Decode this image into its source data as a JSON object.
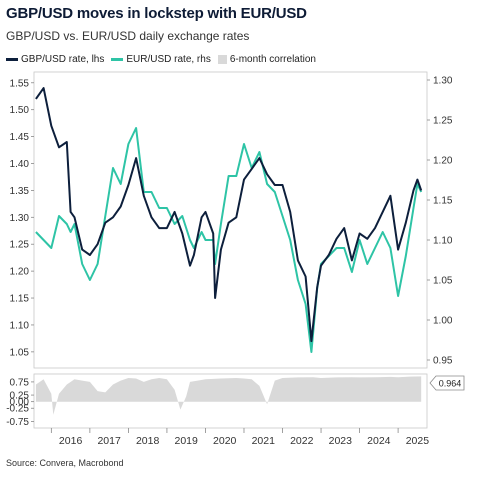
{
  "header": {
    "title": "GBP/USD moves in lockstep with EUR/USD",
    "subtitle": "GBP/USD vs. EUR/USD daily exchange rates"
  },
  "legend": [
    {
      "label": "GBP/USD rate, lhs",
      "color": "#0d1f3c",
      "kind": "line"
    },
    {
      "label": "EUR/USD rate, rhs",
      "color": "#2ec4a6",
      "kind": "line"
    },
    {
      "label": "6-month correlation",
      "color": "#d9d9d9",
      "kind": "area"
    }
  ],
  "source": "Source: Convera, Macrobond",
  "callout": "0.964",
  "chart_data": [
    {
      "type": "line",
      "title": "",
      "x": [
        2015.6,
        2015.8,
        2016.0,
        2016.2,
        2016.4,
        2016.5,
        2016.6,
        2016.8,
        2017.0,
        2017.2,
        2017.4,
        2017.6,
        2017.8,
        2018.0,
        2018.2,
        2018.4,
        2018.6,
        2018.8,
        2019.0,
        2019.2,
        2019.4,
        2019.6,
        2019.7,
        2019.9,
        2020.0,
        2020.2,
        2020.25,
        2020.4,
        2020.6,
        2020.8,
        2021.0,
        2021.2,
        2021.4,
        2021.6,
        2021.8,
        2022.0,
        2022.2,
        2022.4,
        2022.6,
        2022.75,
        2022.9,
        2023.0,
        2023.2,
        2023.4,
        2023.6,
        2023.8,
        2024.0,
        2024.2,
        2024.4,
        2024.6,
        2024.8,
        2025.0,
        2025.2,
        2025.4,
        2025.5,
        2025.6
      ],
      "series": [
        {
          "name": "GBP/USD rate, lhs",
          "axis": "left",
          "values": [
            1.52,
            1.54,
            1.47,
            1.43,
            1.44,
            1.31,
            1.3,
            1.24,
            1.23,
            1.25,
            1.29,
            1.3,
            1.32,
            1.36,
            1.41,
            1.34,
            1.3,
            1.28,
            1.28,
            1.31,
            1.27,
            1.21,
            1.23,
            1.3,
            1.31,
            1.27,
            1.15,
            1.24,
            1.29,
            1.3,
            1.37,
            1.39,
            1.41,
            1.38,
            1.36,
            1.36,
            1.31,
            1.22,
            1.19,
            1.07,
            1.17,
            1.21,
            1.23,
            1.26,
            1.28,
            1.22,
            1.27,
            1.26,
            1.28,
            1.31,
            1.34,
            1.24,
            1.29,
            1.35,
            1.37,
            1.35
          ]
        },
        {
          "name": "EUR/USD rate, rhs",
          "axis": "right",
          "values": [
            1.11,
            1.1,
            1.09,
            1.13,
            1.12,
            1.11,
            1.12,
            1.07,
            1.05,
            1.07,
            1.13,
            1.19,
            1.17,
            1.22,
            1.24,
            1.16,
            1.16,
            1.14,
            1.14,
            1.12,
            1.13,
            1.1,
            1.09,
            1.11,
            1.1,
            1.1,
            1.07,
            1.12,
            1.18,
            1.18,
            1.22,
            1.19,
            1.21,
            1.17,
            1.16,
            1.13,
            1.1,
            1.05,
            1.02,
            0.96,
            1.04,
            1.07,
            1.08,
            1.09,
            1.09,
            1.06,
            1.1,
            1.07,
            1.09,
            1.11,
            1.09,
            1.03,
            1.08,
            1.14,
            1.17,
            1.16
          ]
        }
      ],
      "ylim_left": [
        1.02,
        1.57
      ],
      "ylim_right": [
        0.94,
        1.31
      ],
      "yticks_left": [
        "1.55",
        "1.50",
        "1.45",
        "1.40",
        "1.35",
        "1.30",
        "1.25",
        "1.20",
        "1.15",
        "1.10",
        "1.05"
      ],
      "yticks_right": [
        "1.30",
        "1.25",
        "1.20",
        "1.15",
        "1.10",
        "1.05",
        "1.00",
        "0.95"
      ],
      "grid": false
    },
    {
      "type": "area",
      "title": "",
      "x": [
        2015.6,
        2015.8,
        2016.0,
        2016.05,
        2016.2,
        2016.4,
        2016.6,
        2016.8,
        2017.0,
        2017.2,
        2017.4,
        2017.6,
        2017.8,
        2018.0,
        2018.2,
        2018.4,
        2018.6,
        2018.8,
        2019.0,
        2019.2,
        2019.35,
        2019.5,
        2019.6,
        2019.8,
        2020.0,
        2020.4,
        2020.8,
        2021.0,
        2021.2,
        2021.4,
        2021.6,
        2021.8,
        2022.0,
        2022.4,
        2022.8,
        2023.0,
        2023.4,
        2023.8,
        2024.0,
        2024.4,
        2024.8,
        2025.0,
        2025.3,
        2025.6
      ],
      "series": [
        {
          "name": "6-month correlation",
          "values": [
            0.65,
            0.85,
            0.3,
            -0.5,
            0.3,
            0.65,
            0.85,
            0.8,
            0.75,
            0.4,
            0.35,
            0.65,
            0.8,
            0.9,
            0.88,
            0.75,
            0.85,
            0.9,
            0.85,
            0.45,
            -0.3,
            0.2,
            0.75,
            0.8,
            0.85,
            0.88,
            0.9,
            0.88,
            0.85,
            0.6,
            -0.1,
            0.8,
            0.9,
            0.92,
            0.93,
            0.9,
            0.92,
            0.93,
            0.92,
            0.93,
            0.94,
            0.93,
            0.95,
            0.96
          ]
        }
      ],
      "ylim": [
        -1.0,
        1.05
      ],
      "yticks": [
        "0.75",
        "0.25",
        "0.00",
        "-0.25",
        "-0.75"
      ],
      "xticks": [
        "2016",
        "2017",
        "2018",
        "2019",
        "2020",
        "2021",
        "2022",
        "2023",
        "2024",
        "2025"
      ]
    }
  ]
}
